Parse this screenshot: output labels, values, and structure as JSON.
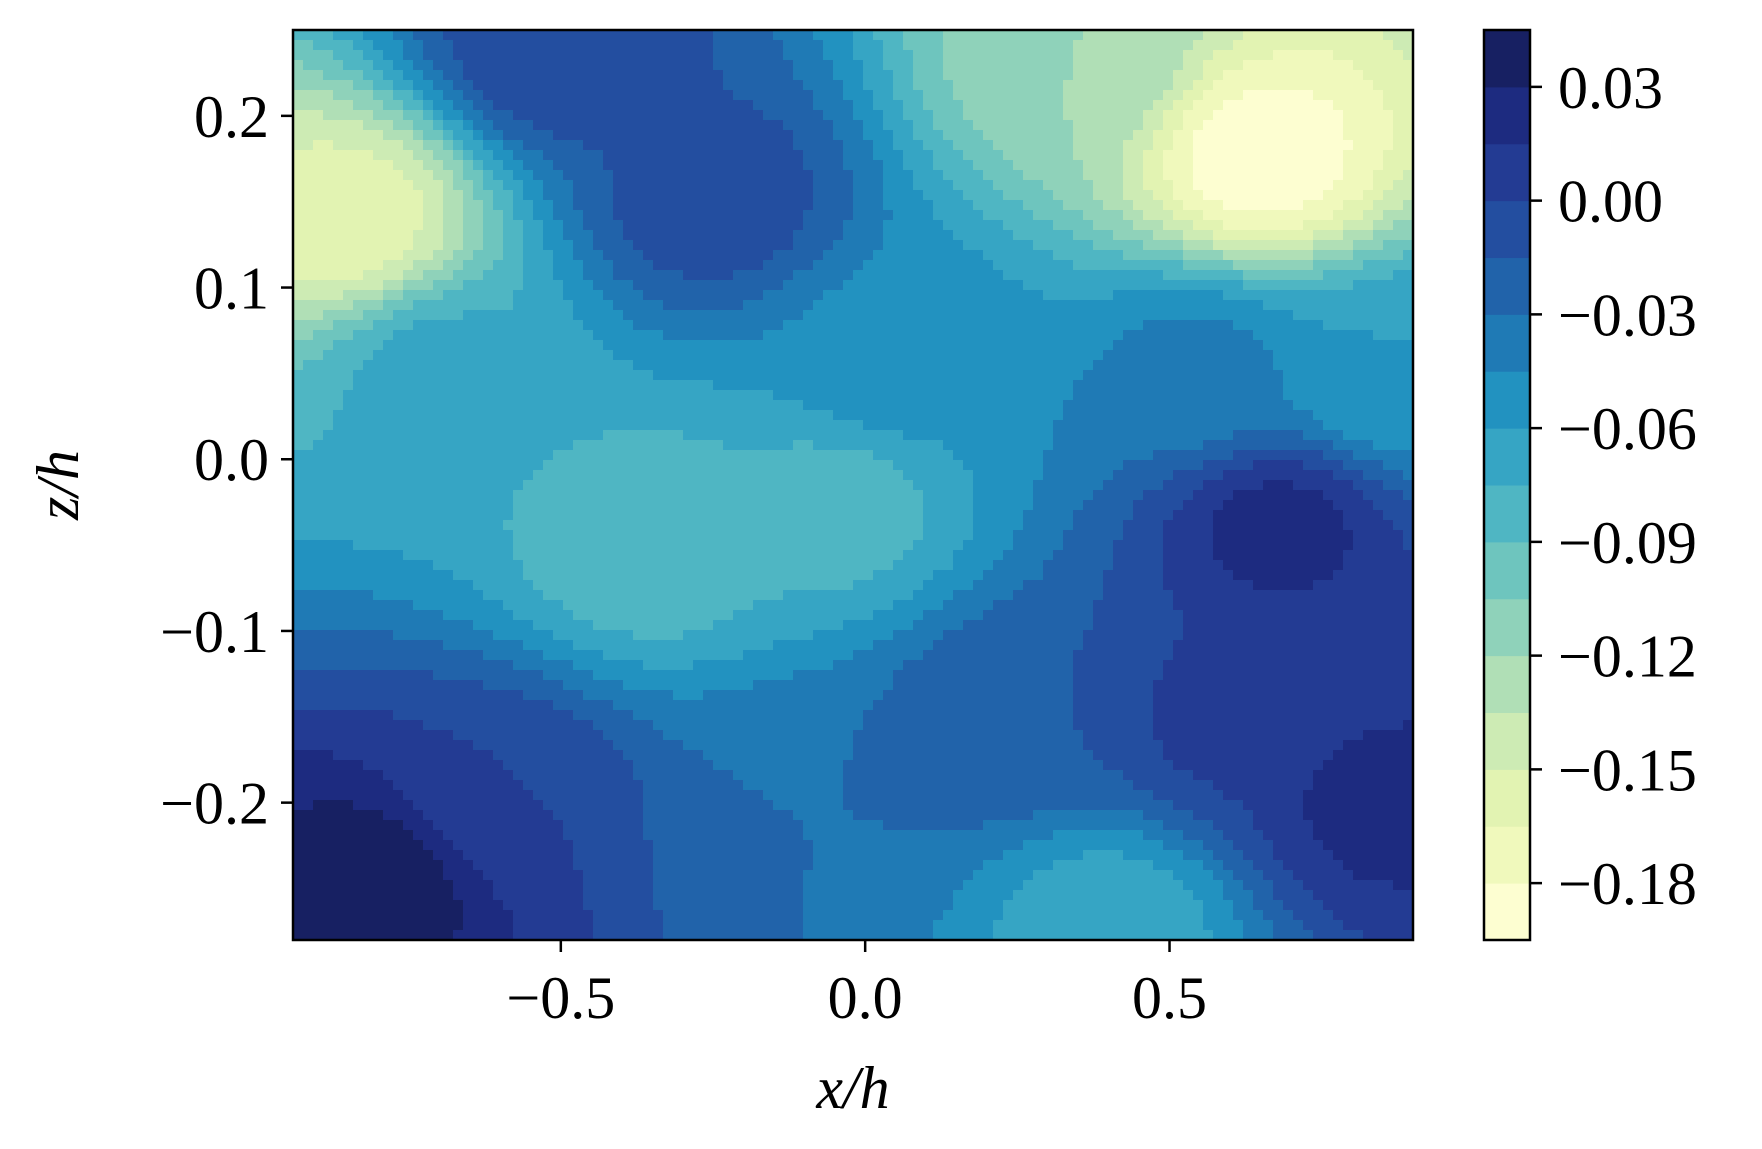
{
  "chart_data": {
    "type": "contour",
    "title": "",
    "xlabel": "x/h",
    "ylabel": "z/h",
    "xlim": [
      -0.94,
      0.9
    ],
    "ylim": [
      -0.28,
      0.25
    ],
    "x_ticks": [
      {
        "value": -0.5,
        "label": "−0.5"
      },
      {
        "value": 0.0,
        "label": "0.0"
      },
      {
        "value": 0.5,
        "label": "0.5"
      }
    ],
    "y_ticks": [
      {
        "value": 0.2,
        "label": "0.2"
      },
      {
        "value": 0.1,
        "label": "0.1"
      },
      {
        "value": 0.0,
        "label": "0.0"
      },
      {
        "value": -0.1,
        "label": "−0.1"
      },
      {
        "value": -0.2,
        "label": "−0.2"
      }
    ],
    "colorbar": {
      "colormap": "YlGnBu",
      "range": [
        -0.195,
        0.045
      ],
      "levels": [
        -0.195,
        -0.18,
        -0.165,
        -0.15,
        -0.135,
        -0.12,
        -0.105,
        -0.09,
        -0.075,
        -0.06,
        -0.045,
        -0.03,
        -0.015,
        0.0,
        0.015,
        0.03,
        0.045
      ],
      "colors": [
        "#fdfed1",
        "#f0f9bc",
        "#e2f3b2",
        "#cdebb4",
        "#b0dfb6",
        "#8fd2ba",
        "#6ec5be",
        "#4fb6c3",
        "#36a5c4",
        "#2292c0",
        "#1f7ab5",
        "#2163aa",
        "#234ea0",
        "#233b93",
        "#1d2b80",
        "#172062"
      ],
      "ticks": [
        {
          "value": 0.03,
          "label": "0.03"
        },
        {
          "value": 0.0,
          "label": "0.00"
        },
        {
          "value": -0.03,
          "label": "−0.03"
        },
        {
          "value": -0.06,
          "label": "−0.06"
        },
        {
          "value": -0.09,
          "label": "−0.09"
        },
        {
          "value": -0.12,
          "label": "−0.12"
        },
        {
          "value": -0.15,
          "label": "−0.15"
        },
        {
          "value": -0.18,
          "label": "−0.18"
        }
      ]
    },
    "field_features": [
      {
        "x": -0.85,
        "z": 0.14,
        "value": -0.16
      },
      {
        "x": 0.65,
        "z": 0.175,
        "value": -0.19
      },
      {
        "x": 0.35,
        "z": 0.23,
        "value": -0.12
      },
      {
        "x": -0.5,
        "z": 0.24,
        "value": 0.0
      },
      {
        "x": -0.25,
        "z": 0.15,
        "value": -0.005
      },
      {
        "x": -0.35,
        "z": -0.05,
        "value": -0.088
      },
      {
        "x": -0.05,
        "z": -0.03,
        "value": -0.082
      },
      {
        "x": -0.7,
        "z": 0.05,
        "value": -0.07
      },
      {
        "x": 0.05,
        "z": 0.06,
        "value": -0.05
      },
      {
        "x": -0.8,
        "z": -0.245,
        "value": 0.04
      },
      {
        "x": -0.6,
        "z": -0.2,
        "value": 0.0
      },
      {
        "x": 0.68,
        "z": -0.04,
        "value": 0.02
      },
      {
        "x": 0.85,
        "z": -0.2,
        "value": 0.02
      },
      {
        "x": 0.6,
        "z": -0.15,
        "value": 0.005
      },
      {
        "x": 0.25,
        "z": -0.15,
        "value": -0.015
      },
      {
        "x": 0.4,
        "z": -0.27,
        "value": -0.07
      },
      {
        "x": -0.1,
        "z": -0.2,
        "value": -0.03
      },
      {
        "x": 0.55,
        "z": 0.05,
        "value": -0.04
      },
      {
        "x": 0.85,
        "z": 0.05,
        "value": -0.06
      }
    ]
  }
}
